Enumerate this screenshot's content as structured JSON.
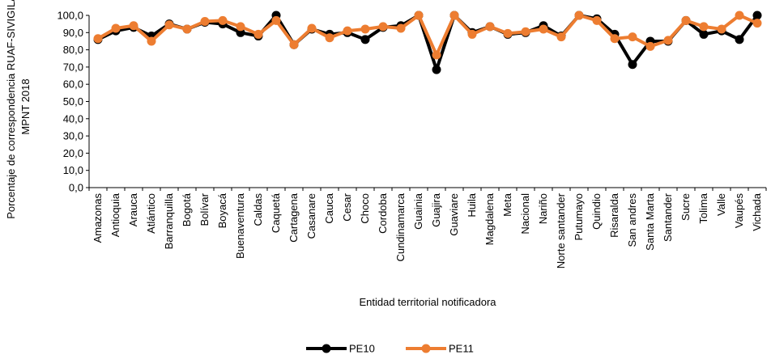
{
  "chart_data": {
    "type": "line",
    "xlabel": "Entidad territorial notificadora",
    "ylabel_lines": [
      "Porcentaje de correspondencia RUAF-SIVIGILA",
      "MPNT 2018"
    ],
    "ylim": [
      0,
      100
    ],
    "yticks": [
      "0,0",
      "10,0",
      "20,0",
      "30,0",
      "40,0",
      "50,0",
      "60,0",
      "70,0",
      "80,0",
      "90,0",
      "100,0"
    ],
    "grid": false,
    "legend_position": "bottom-center",
    "categories": [
      "Amazonas",
      "Antioquia",
      "Arauca",
      "Atlántico",
      "Barranquilla",
      "Bogotá",
      "Bolívar",
      "Boyacá",
      "Buenaventura",
      "Caldas",
      "Caquetá",
      "Cartagena",
      "Casanare",
      "Cauca",
      "Cesar",
      "Choco",
      "Cordoba",
      "Cundinamarca",
      "Guainia",
      "Guajira",
      "Guaviare",
      "Huila",
      "Magdalena",
      "Meta",
      "Nacional",
      "Nariño",
      "Norte santander",
      "Putumayo",
      "Quindio",
      "Risaralda",
      "San andres",
      "Santa Marta",
      "Santander",
      "Sucre",
      "Tolima",
      "Valle",
      "Vaupés",
      "Vichada"
    ],
    "series": [
      {
        "name": "PE10",
        "color": "#000000",
        "values": [
          86.0,
          91.0,
          93.0,
          88.0,
          95.0,
          92.0,
          96.0,
          95.0,
          90.0,
          88.0,
          100.0,
          83.0,
          92.0,
          89.0,
          90.0,
          86.0,
          93.0,
          94.0,
          100.0,
          68.5,
          100.0,
          90.0,
          93.5,
          89.0,
          90.0,
          94.0,
          88.0,
          100.0,
          98.0,
          89.0,
          71.5,
          85.0,
          85.0,
          97.0,
          89.0,
          91.0,
          86.0,
          100.0
        ]
      },
      {
        "name": "PE11",
        "color": "#ED7D31",
        "values": [
          86.5,
          92.5,
          94.0,
          85.0,
          94.5,
          92.0,
          96.5,
          97.0,
          93.5,
          89.0,
          97.0,
          83.0,
          92.5,
          87.0,
          91.0,
          92.0,
          93.5,
          92.5,
          100.0,
          77.0,
          100.0,
          89.0,
          93.5,
          89.5,
          90.5,
          92.0,
          87.5,
          100.0,
          97.0,
          86.5,
          87.5,
          82.0,
          85.5,
          97.0,
          93.5,
          92.0,
          100.0,
          95.5
        ]
      }
    ]
  }
}
